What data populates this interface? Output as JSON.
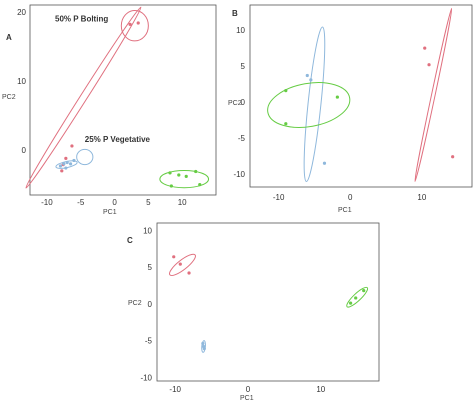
{
  "chart_data": [
    {
      "panel_label": "A",
      "type": "scatter",
      "xlabel": "PC1",
      "ylabel": "PC2",
      "xlim": [
        -12.5,
        15
      ],
      "ylim": [
        -6.5,
        21
      ],
      "xticks": [
        -10,
        -5,
        0,
        5,
        10
      ],
      "yticks": [
        0,
        10,
        20
      ],
      "annotations": [
        {
          "text": "50% P Bolting",
          "x": -8.8,
          "y": 18.6
        },
        {
          "text": "25% P Vegetative",
          "x": -4.4,
          "y": 1.2
        }
      ],
      "series": [
        {
          "color": "#e0707f",
          "points": [
            [
              2.3,
              18.2
            ],
            [
              3.5,
              18.4
            ],
            [
              -6.3,
              0.6
            ],
            [
              -7.2,
              -1.2
            ],
            [
              -7.6,
              -2.1
            ],
            [
              -7.8,
              -3.0
            ]
          ],
          "ellipse": {
            "cx": -4.6,
            "cy": 7.6,
            "rx": 15.6,
            "ry": 0.5,
            "angle_deg": 57
          },
          "ellipse2": {
            "cx": 3.0,
            "cy": 18.0,
            "rx": 2.0,
            "ry": 2.2,
            "angle_deg": 0
          }
        },
        {
          "color": "#8fb8dc",
          "points": [
            [
              -8.0,
              -2.3
            ],
            [
              -7.5,
              -2.0
            ],
            [
              -7.0,
              -1.8
            ],
            [
              -6.5,
              -2.0
            ],
            [
              -7.2,
              -2.6
            ],
            [
              -6.0,
              -1.5
            ]
          ],
          "ellipse": {
            "cx": -7.1,
            "cy": -2.1,
            "rx": 1.6,
            "ry": 0.45,
            "angle_deg": 12
          },
          "ellipse2": {
            "cx": -4.4,
            "cy": -1.0,
            "rx": 1.2,
            "ry": 1.1,
            "angle_deg": 0
          }
        },
        {
          "color": "#66cc44",
          "points": [
            [
              8.2,
              -3.3
            ],
            [
              9.5,
              -3.6
            ],
            [
              10.6,
              -3.8
            ],
            [
              12.0,
              -3.1
            ],
            [
              12.6,
              -5.0
            ],
            [
              8.4,
              -5.2
            ]
          ],
          "ellipse": {
            "cx": 10.3,
            "cy": -4.2,
            "rx": 3.6,
            "ry": 1.25,
            "angle_deg": 0
          }
        }
      ]
    },
    {
      "panel_label": "B",
      "type": "scatter",
      "xlabel": "PC1",
      "ylabel": "PC2",
      "xlim": [
        -14,
        17
      ],
      "ylim": [
        -11.8,
        13.5
      ],
      "xticks": [
        -10,
        0,
        10
      ],
      "yticks": [
        10,
        5,
        0,
        -5,
        -10
      ],
      "series": [
        {
          "color": "#e0707f",
          "points": [
            [
              10.4,
              7.5
            ],
            [
              11.0,
              5.2
            ],
            [
              14.3,
              -7.6
            ]
          ],
          "ellipse": {
            "cx": 11.6,
            "cy": 1.0,
            "rx": 12.3,
            "ry": 0.25,
            "angle_deg": 78
          }
        },
        {
          "color": "#8fb8dc",
          "points": [
            [
              -6.0,
              3.7
            ],
            [
              -5.5,
              3.1
            ],
            [
              -3.6,
              -8.5
            ]
          ],
          "ellipse": {
            "cx": -5.0,
            "cy": -0.3,
            "rx": 10.8,
            "ry": 0.9,
            "angle_deg": 84
          }
        },
        {
          "color": "#66cc44",
          "points": [
            [
              -9.0,
              1.6
            ],
            [
              -9.0,
              -3.0
            ],
            [
              -1.8,
              0.7
            ]
          ],
          "ellipse": {
            "cx": -5.8,
            "cy": -0.4,
            "rx": 5.8,
            "ry": 3.0,
            "angle_deg": 10
          }
        }
      ]
    },
    {
      "panel_label": "C",
      "type": "scatter",
      "xlabel": "PC1",
      "ylabel": "PC2",
      "xlim": [
        -12.5,
        18
      ],
      "ylim": [
        -10.5,
        11
      ],
      "xticks": [
        -10,
        0,
        10
      ],
      "yticks": [
        10,
        5,
        0,
        -5,
        -10
      ],
      "series": [
        {
          "color": "#e0707f",
          "points": [
            [
              -10.2,
              6.4
            ],
            [
              -9.3,
              5.4
            ],
            [
              -8.1,
              4.2
            ]
          ],
          "ellipse": {
            "cx": -9.0,
            "cy": 5.3,
            "rx": 2.2,
            "ry": 0.65,
            "angle_deg": 38
          }
        },
        {
          "color": "#66cc44",
          "points": [
            [
              14.1,
              0.1
            ],
            [
              14.8,
              0.8
            ],
            [
              15.9,
              1.8
            ]
          ],
          "ellipse": {
            "cx": 15.0,
            "cy": 0.9,
            "rx": 1.9,
            "ry": 0.5,
            "angle_deg": 43
          }
        },
        {
          "color": "#8fb8dc",
          "points": [
            [
              -6.2,
              -5.4
            ],
            [
              -6.0,
              -6.1
            ],
            [
              -6.1,
              -5.8
            ]
          ],
          "ellipse": {
            "cx": -6.1,
            "cy": -5.8,
            "rx": 0.8,
            "ry": 0.25,
            "angle_deg": 85
          }
        }
      ]
    }
  ]
}
